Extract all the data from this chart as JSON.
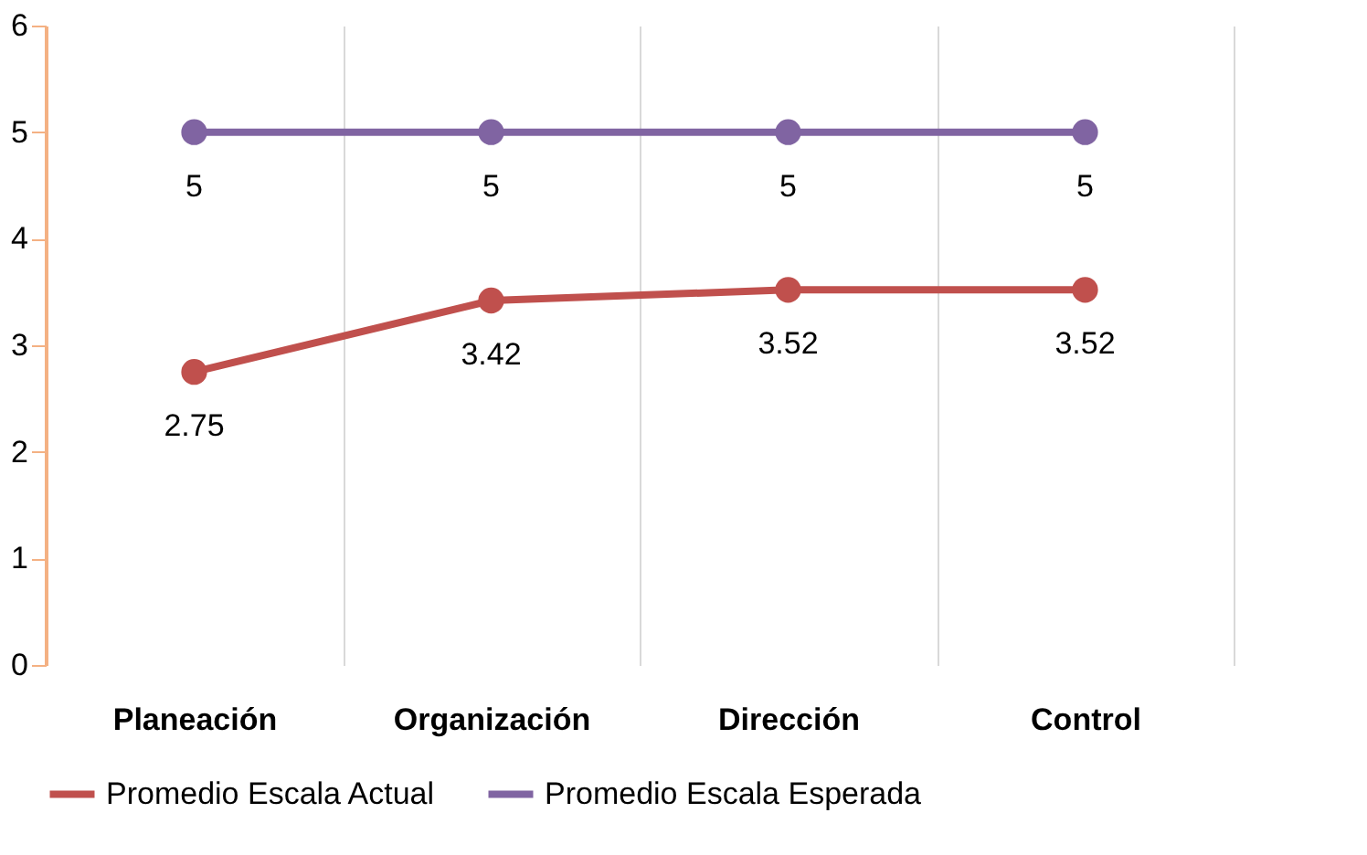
{
  "chart_data": {
    "type": "line",
    "categories": [
      "Planeación",
      "Organización",
      "Dirección",
      "Control"
    ],
    "series": [
      {
        "name": "Promedio Escala Actual",
        "color": "#c0504d",
        "values": [
          2.75,
          3.42,
          3.52,
          3.52
        ]
      },
      {
        "name": "Promedio Escala Esperada",
        "color": "#8064a2",
        "values": [
          5,
          5,
          5,
          5
        ]
      }
    ],
    "ylim": [
      0,
      6
    ],
    "yticks": [
      0,
      1,
      2,
      3,
      4,
      5,
      6
    ],
    "grid": "x",
    "legend": "bottom",
    "marker": "circle",
    "line_style": "solid",
    "data_labels": true
  }
}
